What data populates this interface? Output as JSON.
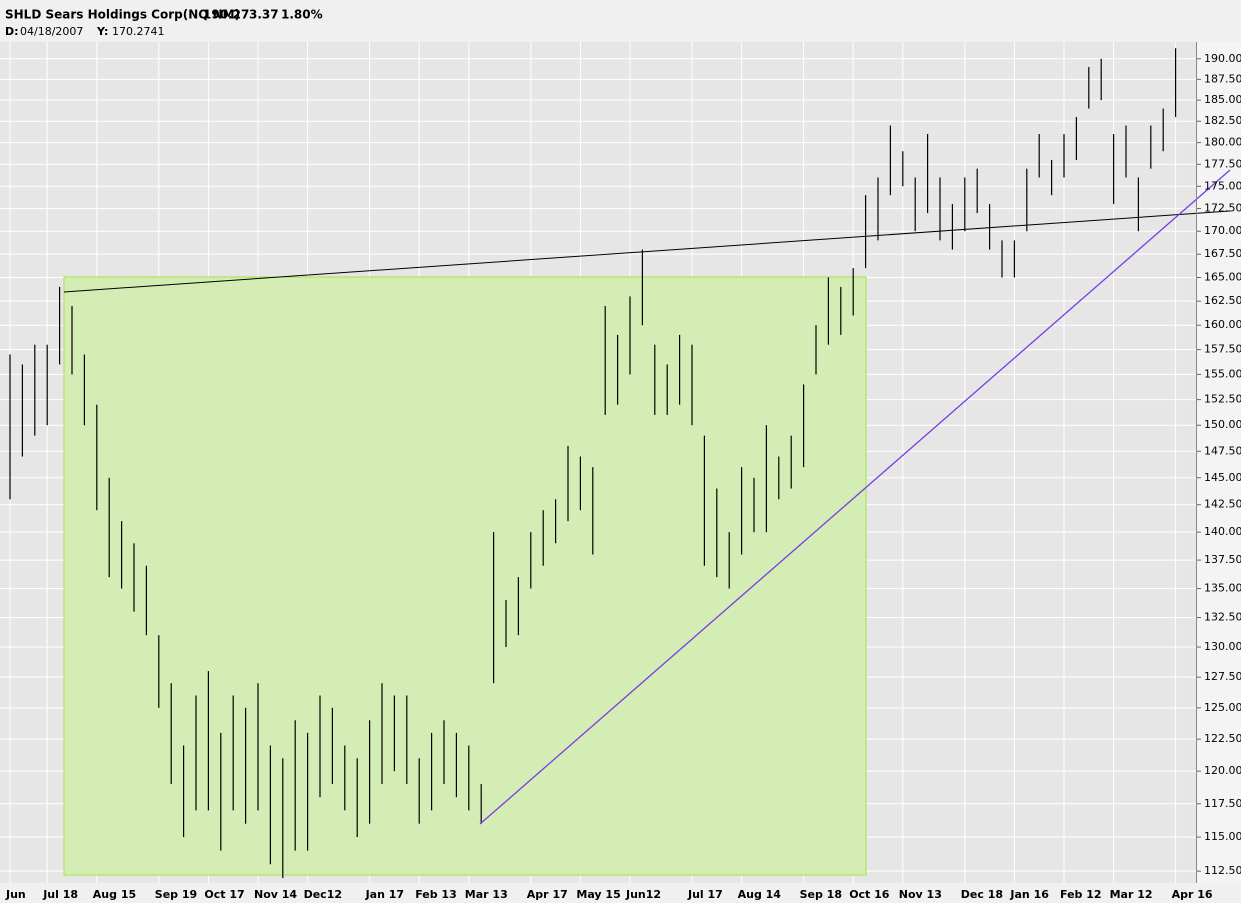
{
  "chart_data": {
    "type": "ohlc",
    "title": "SHLD Sears Holdings Corp(NQ NM)",
    "last": 190.27,
    "change": 3.37,
    "change_pct": {
      "value": 1.8,
      "label": "1.80%"
    },
    "cursor_date_label": "D:",
    "cursor_date": "04/18/2007",
    "cursor_value_label": "Y:",
    "cursor_value": 170.2741,
    "color": "#000000",
    "up_color": "#19c819",
    "log_scale": true,
    "grid": true,
    "ylim": [
      111.5,
      191.7
    ],
    "yticks": [
      {
        "value": 112.5,
        "label": "112.50"
      },
      {
        "value": 115,
        "label": "115.00"
      },
      {
        "value": 117.5,
        "label": "117.50"
      },
      {
        "value": 120,
        "label": "120.00"
      },
      {
        "value": 122.5,
        "label": "122.50"
      },
      {
        "value": 125,
        "label": "125.00"
      },
      {
        "value": 127.5,
        "label": "127.50"
      },
      {
        "value": 130,
        "label": "130.00"
      },
      {
        "value": 132.5,
        "label": "132.50"
      },
      {
        "value": 135,
        "label": "135.00"
      },
      {
        "value": 137.5,
        "label": "137.50"
      },
      {
        "value": 140,
        "label": "140.00"
      },
      {
        "value": 142.5,
        "label": "142.50"
      },
      {
        "value": 145,
        "label": "145.00"
      },
      {
        "value": 147.5,
        "label": "147.50"
      },
      {
        "value": 150,
        "label": "150.00"
      },
      {
        "value": 152.5,
        "label": "152.50"
      },
      {
        "value": 155,
        "label": "155.00"
      },
      {
        "value": 157.5,
        "label": "157.50"
      },
      {
        "value": 160,
        "label": "160.00"
      },
      {
        "value": 162.5,
        "label": "162.50"
      },
      {
        "value": 165,
        "label": "165.00"
      },
      {
        "value": 167.5,
        "label": "167.50"
      },
      {
        "value": 170,
        "label": "170.00"
      },
      {
        "value": 172.5,
        "label": "172.50"
      },
      {
        "value": 175,
        "label": "175.00"
      },
      {
        "value": 177.5,
        "label": "177.50"
      },
      {
        "value": 180,
        "label": "180.00"
      },
      {
        "value": 182.5,
        "label": "182.50"
      },
      {
        "value": 185,
        "label": "185.00"
      },
      {
        "value": 187.5,
        "label": "187.50"
      },
      {
        "value": 190,
        "label": "190.00"
      }
    ],
    "categories": [
      "Jun",
      null,
      null,
      "Jul 18",
      null,
      null,
      null,
      "Aug 15",
      null,
      null,
      null,
      null,
      "Sep 19",
      null,
      null,
      null,
      "Oct 17",
      null,
      null,
      null,
      "Nov 14",
      null,
      null,
      null,
      "Dec12",
      null,
      null,
      null,
      null,
      "Jan 17",
      null,
      null,
      null,
      "Feb 13",
      null,
      null,
      null,
      "Mar 13",
      null,
      null,
      null,
      null,
      "Apr 17",
      null,
      null,
      null,
      "May 15",
      null,
      null,
      null,
      "Jun12",
      null,
      null,
      null,
      null,
      "Jul 17",
      null,
      null,
      null,
      "Aug 14",
      null,
      null,
      null,
      null,
      "Sep 18",
      null,
      null,
      null,
      "Oct 16",
      null,
      null,
      null,
      "Nov 13",
      null,
      null,
      null,
      null,
      "Dec 18",
      null,
      null,
      null,
      "Jan 16",
      null,
      null,
      null,
      "Feb 12",
      null,
      null,
      null,
      "Mar 12",
      null,
      null,
      null,
      null,
      "Apr 16"
    ],
    "high": [
      157,
      156,
      158,
      158,
      164,
      162,
      157,
      152,
      145,
      141,
      139,
      137,
      131,
      127,
      122,
      126,
      128,
      123,
      126,
      125,
      127,
      122,
      121,
      124,
      123,
      126,
      125,
      122,
      121,
      124,
      127,
      126,
      126,
      121,
      123,
      124,
      123,
      122,
      119,
      140,
      134,
      136,
      140,
      142,
      143,
      148,
      147,
      146,
      162,
      159,
      163,
      168,
      158,
      156,
      159,
      158,
      149,
      144,
      140,
      146,
      145,
      150,
      147,
      149,
      154,
      160,
      165,
      164,
      166,
      174,
      176,
      182,
      179,
      176,
      181,
      176,
      173,
      176,
      177,
      173,
      169,
      169,
      177,
      181,
      178,
      181,
      183,
      189,
      190,
      181,
      182,
      176,
      182,
      184,
      191.3
    ],
    "low": [
      143,
      147,
      149,
      150,
      156,
      155,
      150,
      142,
      136,
      135,
      133,
      131,
      125,
      119,
      115,
      117,
      117,
      114,
      117,
      116,
      117,
      113,
      112,
      114,
      114,
      118,
      119,
      117,
      115,
      116,
      119,
      120,
      119,
      116,
      117,
      119,
      118,
      117,
      116,
      127,
      130,
      131,
      135,
      137,
      139,
      141,
      142,
      138,
      151,
      152,
      155,
      160,
      151,
      151,
      152,
      150,
      137,
      136,
      135,
      138,
      140,
      140,
      143,
      144,
      146,
      155,
      158,
      159,
      161,
      166,
      169,
      174,
      175,
      170,
      172,
      169,
      168,
      170,
      172,
      168,
      165,
      165,
      170,
      176,
      174,
      176,
      178,
      184,
      185,
      173,
      176,
      170,
      177,
      179,
      183
    ]
  }
}
